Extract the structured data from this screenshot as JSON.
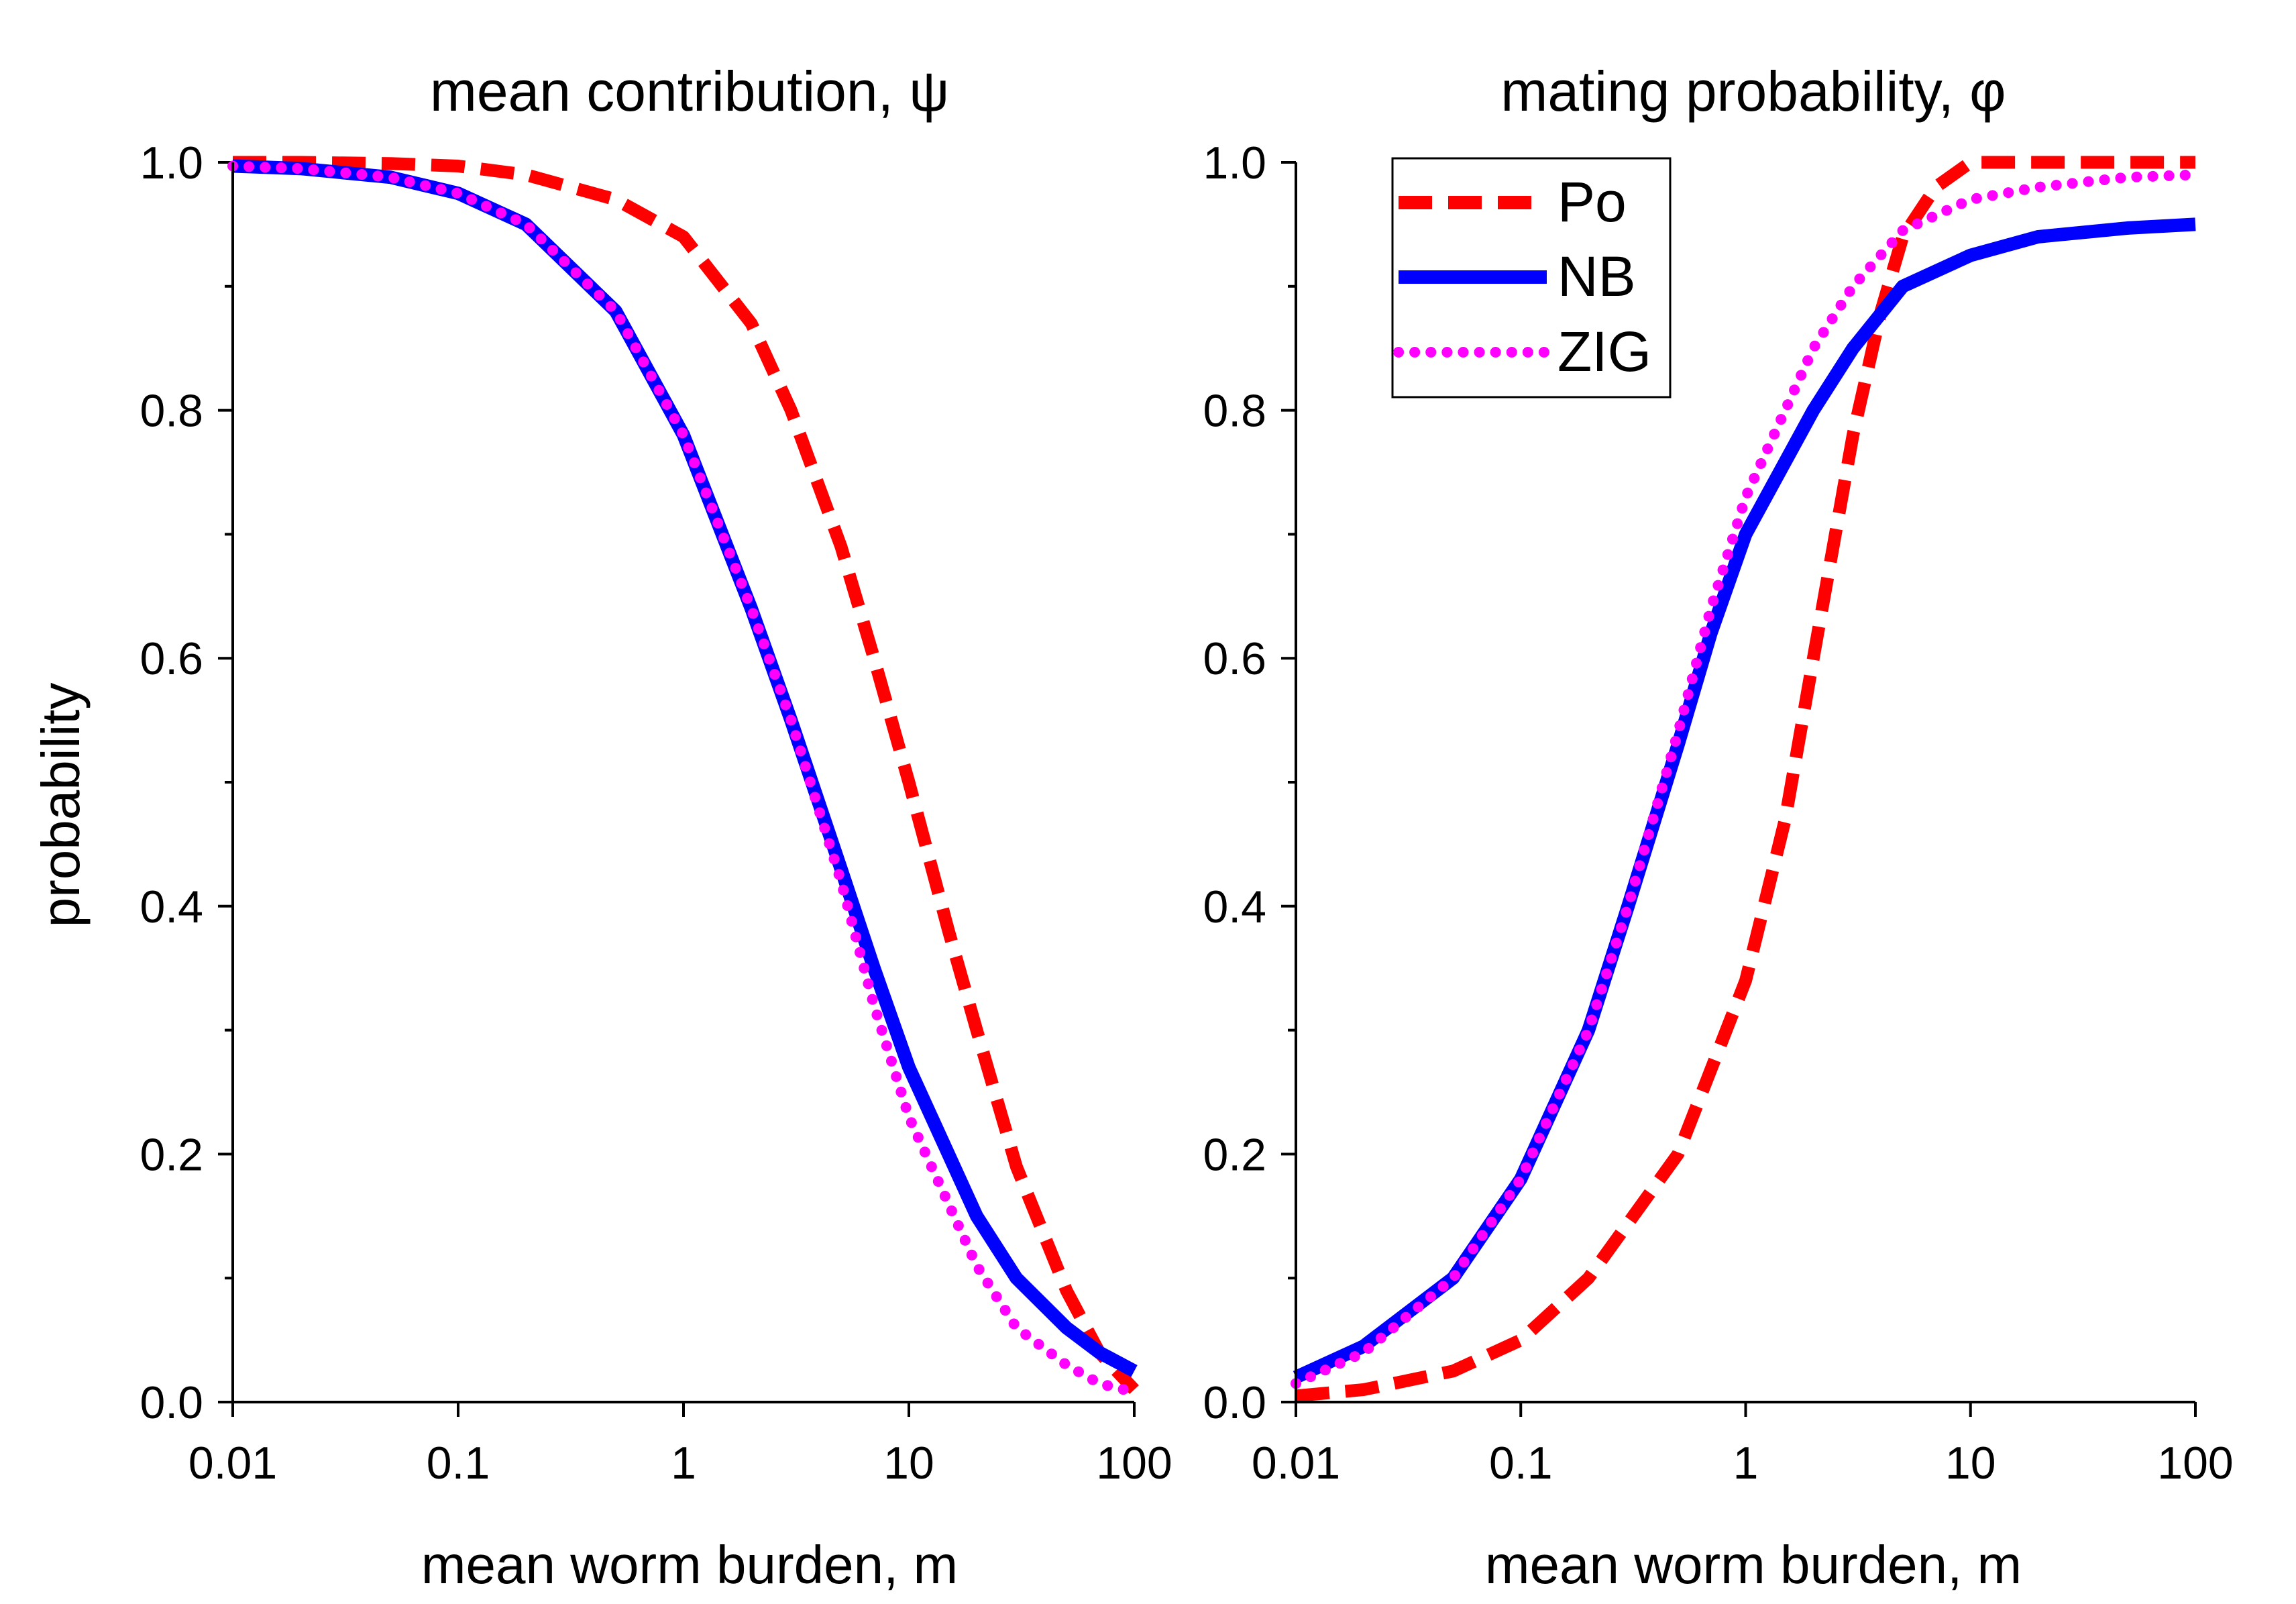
{
  "figure": {
    "ylabel": "probability",
    "colors": {
      "Po": "#ff0000",
      "NB": "#0000ff",
      "ZIG": "#ff00ff"
    },
    "legend": {
      "placement": "top-left of right panel",
      "entries": [
        "Po",
        "NB",
        "ZIG"
      ]
    }
  },
  "chart_data": [
    {
      "type": "line",
      "title": "mean contribution, ψ",
      "xlabel": "mean worm burden, m",
      "ylabel": "probability",
      "xscale": "log",
      "xlim": [
        0.01,
        100
      ],
      "ylim": [
        0.0,
        1.0
      ],
      "xticks": [
        "0.01",
        "0.1",
        "1",
        "10",
        "100"
      ],
      "yticks": [
        "0.0",
        "0.2",
        "0.4",
        "0.6",
        "0.8",
        "1.0"
      ],
      "grid": false,
      "series": [
        {
          "name": "Po",
          "style": "dashed",
          "color": "#ff0000",
          "x": [
            0.01,
            0.02,
            0.05,
            0.1,
            0.2,
            0.5,
            1,
            2,
            3,
            5,
            7,
            10,
            15,
            20,
            30,
            50,
            70,
            100
          ],
          "y": [
            1.0,
            1.0,
            0.999,
            0.997,
            0.99,
            0.97,
            0.94,
            0.87,
            0.8,
            0.69,
            0.6,
            0.5,
            0.38,
            0.3,
            0.19,
            0.09,
            0.04,
            0.01
          ]
        },
        {
          "name": "NB",
          "style": "solid",
          "color": "#0000ff",
          "x": [
            0.01,
            0.02,
            0.05,
            0.1,
            0.2,
            0.5,
            1,
            2,
            3,
            5,
            7,
            10,
            20,
            30,
            50,
            70,
            100
          ],
          "y": [
            0.997,
            0.995,
            0.988,
            0.975,
            0.95,
            0.88,
            0.78,
            0.64,
            0.55,
            0.43,
            0.35,
            0.27,
            0.15,
            0.1,
            0.06,
            0.04,
            0.025
          ]
        },
        {
          "name": "ZIG",
          "style": "dotted",
          "color": "#ff00ff",
          "x": [
            0.01,
            0.02,
            0.05,
            0.1,
            0.2,
            0.5,
            1,
            2,
            3,
            5,
            7,
            10,
            20,
            30,
            50,
            70,
            100
          ],
          "y": [
            0.997,
            0.995,
            0.988,
            0.975,
            0.95,
            0.88,
            0.78,
            0.64,
            0.55,
            0.42,
            0.32,
            0.23,
            0.11,
            0.06,
            0.03,
            0.015,
            0.008
          ]
        }
      ]
    },
    {
      "type": "line",
      "title": "mating probability, φ",
      "xlabel": "mean worm burden, m",
      "ylabel": "probability",
      "xscale": "log",
      "xlim": [
        0.01,
        100
      ],
      "ylim": [
        0.0,
        1.0
      ],
      "xticks": [
        "0.01",
        "0.1",
        "1",
        "10",
        "100"
      ],
      "yticks": [
        "0.0",
        "0.2",
        "0.4",
        "0.6",
        "0.8",
        "1.0"
      ],
      "grid": false,
      "legend": "top-left",
      "series": [
        {
          "name": "Po",
          "style": "dashed",
          "color": "#ff0000",
          "x": [
            0.01,
            0.02,
            0.05,
            0.1,
            0.2,
            0.5,
            1,
            1.5,
            2,
            3,
            4,
            5,
            7,
            10,
            20,
            50,
            100
          ],
          "y": [
            0.005,
            0.01,
            0.025,
            0.05,
            0.1,
            0.2,
            0.34,
            0.47,
            0.6,
            0.78,
            0.88,
            0.94,
            0.98,
            1.0,
            1.0,
            1.0,
            1.0
          ]
        },
        {
          "name": "NB",
          "style": "solid",
          "color": "#0000ff",
          "x": [
            0.01,
            0.02,
            0.05,
            0.1,
            0.2,
            0.3,
            0.5,
            0.7,
            1,
            2,
            3,
            5,
            10,
            20,
            50,
            100
          ],
          "y": [
            0.02,
            0.045,
            0.1,
            0.18,
            0.3,
            0.4,
            0.53,
            0.62,
            0.7,
            0.8,
            0.85,
            0.9,
            0.925,
            0.94,
            0.947,
            0.95
          ]
        },
        {
          "name": "ZIG",
          "style": "dotted",
          "color": "#ff00ff",
          "x": [
            0.01,
            0.02,
            0.05,
            0.1,
            0.2,
            0.3,
            0.5,
            0.7,
            1,
            2,
            3,
            5,
            10,
            20,
            50,
            100
          ],
          "y": [
            0.015,
            0.04,
            0.1,
            0.18,
            0.3,
            0.4,
            0.54,
            0.64,
            0.73,
            0.85,
            0.9,
            0.945,
            0.97,
            0.98,
            0.988,
            0.99
          ]
        }
      ]
    }
  ]
}
